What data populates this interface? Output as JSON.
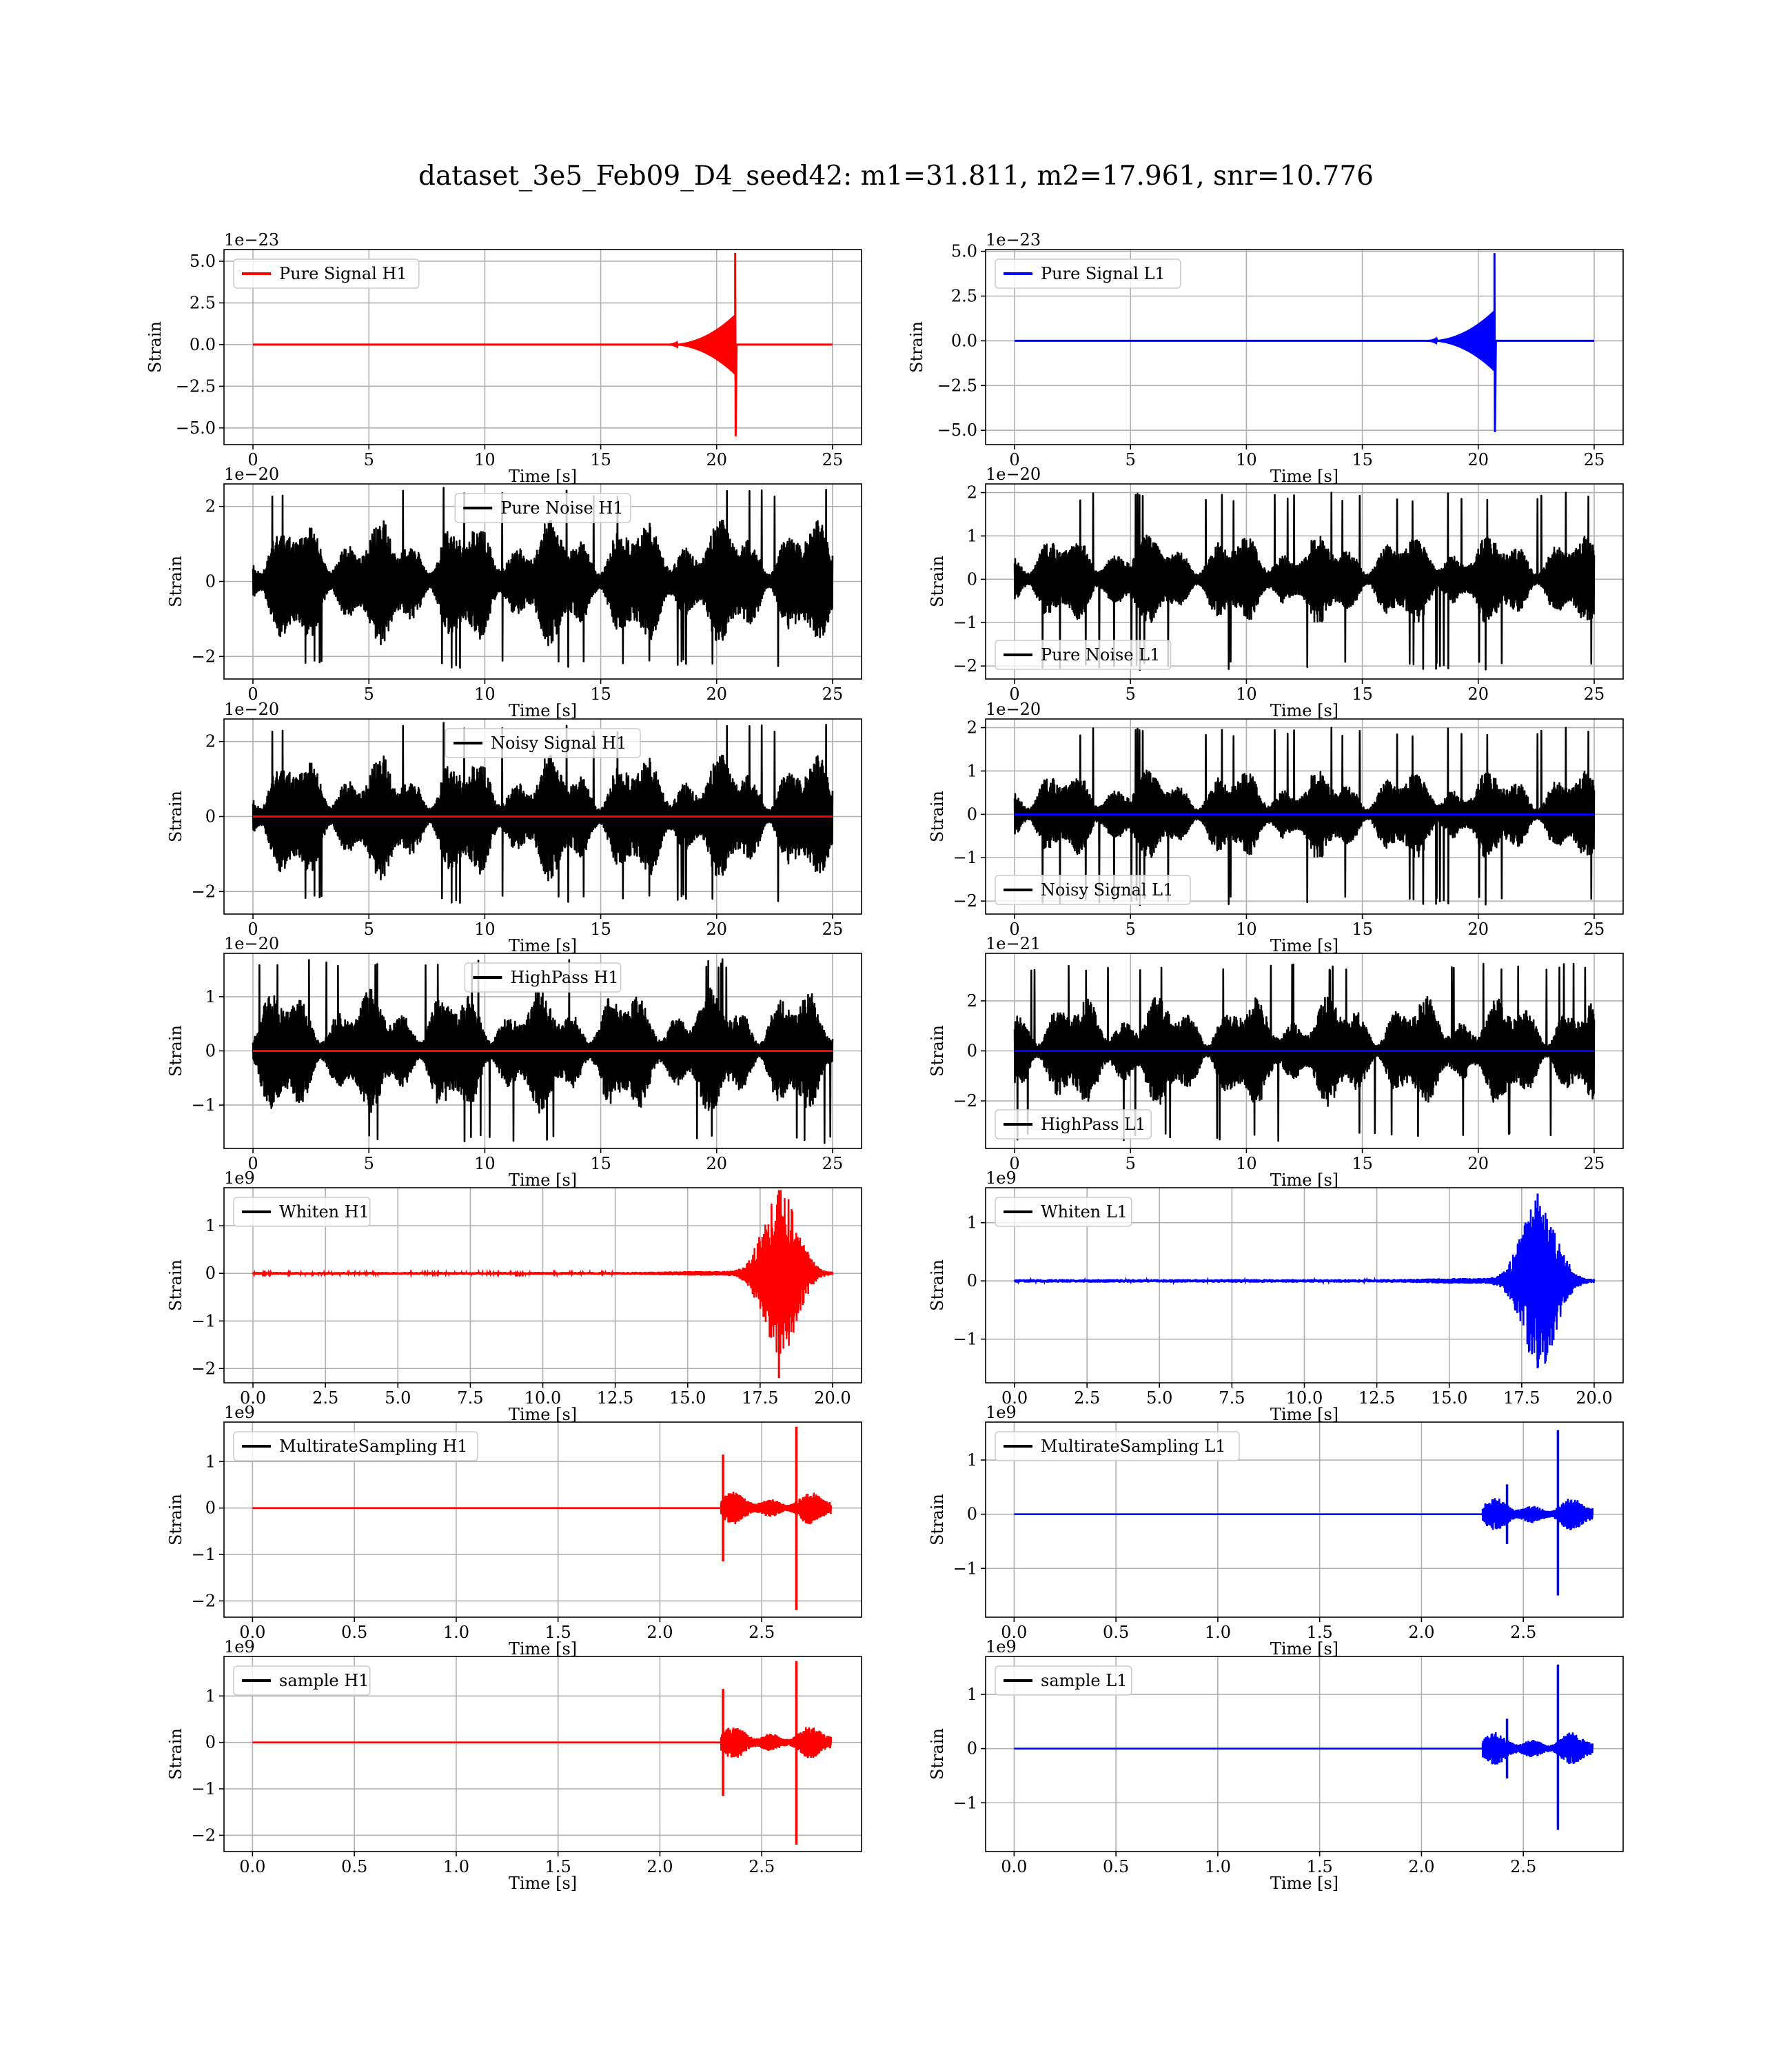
{
  "figure": {
    "title": "dataset_3e5_Feb09_D4_seed42: m1=31.811, m2=17.961, snr=10.776"
  },
  "colors": {
    "h1": "#ff0000",
    "l1": "#0000ff",
    "noise": "#000000",
    "grid": "#b0b0b0",
    "axes": "#000000"
  },
  "chart_data": [
    {
      "id": "pure-signal-h1",
      "type": "line",
      "row": 0,
      "col": 0,
      "legend": "Pure Signal H1",
      "legend_color": "h1",
      "legend_loc": "upper-left",
      "xlabel": "Time [s]",
      "ylabel": "Strain",
      "offset_text": "1e−23",
      "xlim": [
        -1.25,
        26.25
      ],
      "ylim": [
        -6.0,
        5.7
      ],
      "xticks": [
        0,
        5,
        10,
        15,
        20,
        25
      ],
      "xtick_labels": [
        "0",
        "5",
        "10",
        "15",
        "20",
        "25"
      ],
      "yticks": [
        -5,
        -2.5,
        0,
        2.5,
        5
      ],
      "ytick_labels": [
        "−5.0",
        "−2.5",
        "0.0",
        "2.5",
        "5.0"
      ],
      "signal": {
        "kind": "chirp",
        "color": "h1",
        "t0": 0,
        "t1": 25,
        "merge": 20.8,
        "peak": 5.5,
        "trough": -5.5,
        "plateau": 1.8
      }
    },
    {
      "id": "pure-signal-l1",
      "type": "line",
      "row": 0,
      "col": 1,
      "legend": "Pure Signal L1",
      "legend_color": "l1",
      "legend_loc": "upper-left",
      "xlabel": "Time [s]",
      "ylabel": "Strain",
      "offset_text": "1e−23",
      "xlim": [
        -1.25,
        26.25
      ],
      "ylim": [
        -5.8,
        5.1
      ],
      "xticks": [
        0,
        5,
        10,
        15,
        20,
        25
      ],
      "xtick_labels": [
        "0",
        "5",
        "10",
        "15",
        "20",
        "25"
      ],
      "yticks": [
        -5,
        -2.5,
        0,
        2.5,
        5
      ],
      "ytick_labels": [
        "−5.0",
        "−2.5",
        "0.0",
        "2.5",
        "5.0"
      ],
      "signal": {
        "kind": "chirp",
        "color": "l1",
        "t0": 0,
        "t1": 25,
        "merge": 20.7,
        "peak": 4.9,
        "trough": -5.1,
        "plateau": 1.7
      }
    },
    {
      "id": "pure-noise-h1",
      "type": "line",
      "row": 1,
      "col": 0,
      "legend": "Pure Noise H1",
      "legend_color": "noise",
      "legend_loc": "upper-center",
      "xlabel": "Time [s]",
      "ylabel": "Strain",
      "offset_text": "1e−20",
      "xlim": [
        -1.25,
        26.25
      ],
      "ylim": [
        -2.6,
        2.6
      ],
      "xticks": [
        0,
        5,
        10,
        15,
        20,
        25
      ],
      "xtick_labels": [
        "0",
        "5",
        "10",
        "15",
        "20",
        "25"
      ],
      "yticks": [
        -2,
        0,
        2
      ],
      "ytick_labels": [
        "−2",
        "0",
        "2"
      ],
      "noise": {
        "color": "noise",
        "t0": 0,
        "t1": 25,
        "amp": 1.45,
        "max": 2.5,
        "min": -2.3,
        "seed": 11
      }
    },
    {
      "id": "pure-noise-l1",
      "type": "line",
      "row": 1,
      "col": 1,
      "legend": "Pure Noise L1",
      "legend_color": "noise",
      "legend_loc": "lower-left",
      "xlabel": "Time [s]",
      "ylabel": "Strain",
      "offset_text": "1e−20",
      "xlim": [
        -1.25,
        26.25
      ],
      "ylim": [
        -2.3,
        2.2
      ],
      "xticks": [
        0,
        5,
        10,
        15,
        20,
        25
      ],
      "xtick_labels": [
        "0",
        "5",
        "10",
        "15",
        "20",
        "25"
      ],
      "yticks": [
        -2,
        -1,
        0,
        1,
        2
      ],
      "ytick_labels": [
        "−2",
        "−1",
        "0",
        "1",
        "2"
      ],
      "noise": {
        "color": "noise",
        "t0": 0,
        "t1": 25,
        "amp": 0.9,
        "max": 2.0,
        "min": -2.1,
        "seed": 23
      }
    },
    {
      "id": "noisy-signal-h1",
      "type": "line",
      "row": 2,
      "col": 0,
      "legend": "Noisy Signal H1",
      "legend_color": "noise",
      "legend_loc": "upper-center",
      "xlabel": "Time [s]",
      "ylabel": "Strain",
      "offset_text": "1e−20",
      "xlim": [
        -1.25,
        26.25
      ],
      "ylim": [
        -2.6,
        2.6
      ],
      "xticks": [
        0,
        5,
        10,
        15,
        20,
        25
      ],
      "xtick_labels": [
        "0",
        "5",
        "10",
        "15",
        "20",
        "25"
      ],
      "yticks": [
        -2,
        0,
        2
      ],
      "ytick_labels": [
        "−2",
        "0",
        "2"
      ],
      "noise": {
        "color": "noise",
        "t0": 0,
        "t1": 25,
        "amp": 1.45,
        "max": 2.5,
        "min": -2.3,
        "seed": 11
      },
      "overlay": {
        "color": "h1",
        "t0": 0,
        "t1": 25,
        "y": 0
      }
    },
    {
      "id": "noisy-signal-l1",
      "type": "line",
      "row": 2,
      "col": 1,
      "legend": "Noisy Signal L1",
      "legend_color": "noise",
      "legend_loc": "lower-left",
      "xlabel": "Time [s]",
      "ylabel": "Strain",
      "offset_text": "1e−20",
      "xlim": [
        -1.25,
        26.25
      ],
      "ylim": [
        -2.3,
        2.2
      ],
      "xticks": [
        0,
        5,
        10,
        15,
        20,
        25
      ],
      "xtick_labels": [
        "0",
        "5",
        "10",
        "15",
        "20",
        "25"
      ],
      "yticks": [
        -2,
        -1,
        0,
        1,
        2
      ],
      "ytick_labels": [
        "−2",
        "−1",
        "0",
        "1",
        "2"
      ],
      "noise": {
        "color": "noise",
        "t0": 0,
        "t1": 25,
        "amp": 0.9,
        "max": 2.0,
        "min": -2.1,
        "seed": 23
      },
      "overlay": {
        "color": "l1",
        "t0": 0,
        "t1": 25,
        "y": 0
      }
    },
    {
      "id": "highpass-h1",
      "type": "line",
      "row": 3,
      "col": 0,
      "legend": "HighPass H1",
      "legend_color": "noise",
      "legend_loc": "upper-center",
      "xlabel": "Time [s]",
      "ylabel": "Strain",
      "offset_text": "1e−20",
      "xlim": [
        -1.25,
        26.25
      ],
      "ylim": [
        -1.8,
        1.8
      ],
      "xticks": [
        0,
        5,
        10,
        15,
        20,
        25
      ],
      "xtick_labels": [
        "0",
        "5",
        "10",
        "15",
        "20",
        "25"
      ],
      "yticks": [
        -1,
        0,
        1
      ],
      "ytick_labels": [
        "−1",
        "0",
        "1"
      ],
      "noise": {
        "color": "noise",
        "t0": 0,
        "t1": 25,
        "amp": 1.0,
        "max": 1.7,
        "min": -1.7,
        "seed": 37
      },
      "overlay": {
        "color": "h1",
        "t0": 0,
        "t1": 25,
        "y": 0
      }
    },
    {
      "id": "highpass-l1",
      "type": "line",
      "row": 3,
      "col": 1,
      "legend": "HighPass L1",
      "legend_color": "noise",
      "legend_loc": "lower-left",
      "xlabel": "Time [s]",
      "ylabel": "Strain",
      "offset_text": "1e−21",
      "xlim": [
        -1.25,
        26.25
      ],
      "ylim": [
        -3.9,
        3.9
      ],
      "xticks": [
        0,
        5,
        10,
        15,
        20,
        25
      ],
      "xtick_labels": [
        "0",
        "5",
        "10",
        "15",
        "20",
        "25"
      ],
      "yticks": [
        -2,
        0,
        2
      ],
      "ytick_labels": [
        "−2",
        "0",
        "2"
      ],
      "noise": {
        "color": "noise",
        "t0": 0,
        "t1": 25,
        "amp": 1.9,
        "max": 3.5,
        "min": -3.6,
        "seed": 41
      },
      "overlay": {
        "color": "l1",
        "t0": 0,
        "t1": 25,
        "y": 0
      }
    },
    {
      "id": "whiten-h1",
      "type": "line",
      "row": 4,
      "col": 0,
      "legend": "Whiten H1",
      "legend_color": "noise",
      "legend_loc": "upper-left",
      "xlabel": "Time [s]",
      "ylabel": "Strain",
      "offset_text": "1e9",
      "xlim": [
        -1.0,
        21.0
      ],
      "ylim": [
        -2.3,
        1.8
      ],
      "xticks": [
        0,
        2.5,
        5,
        7.5,
        10,
        12.5,
        15,
        17.5,
        20
      ],
      "xtick_labels": [
        "0.0",
        "2.5",
        "5.0",
        "7.5",
        "10.0",
        "12.5",
        "15.0",
        "17.5",
        "20.0"
      ],
      "yticks": [
        -2,
        -1,
        0,
        1
      ],
      "ytick_labels": [
        "−2",
        "−1",
        "0",
        "1"
      ],
      "burst": {
        "color": "h1",
        "t0": 0,
        "t1": 20,
        "center": 18.2,
        "width": 0.8,
        "peak": 1.75,
        "trough": -2.2,
        "floor": 0.02
      }
    },
    {
      "id": "whiten-l1",
      "type": "line",
      "row": 4,
      "col": 1,
      "legend": "Whiten L1",
      "legend_color": "noise",
      "legend_loc": "upper-left",
      "xlabel": "Time [s]",
      "ylabel": "Strain",
      "offset_text": "1e9",
      "xlim": [
        -1.0,
        21.0
      ],
      "ylim": [
        -1.75,
        1.6
      ],
      "xticks": [
        0,
        2.5,
        5,
        7.5,
        10,
        12.5,
        15,
        17.5,
        20
      ],
      "xtick_labels": [
        "0.0",
        "2.5",
        "5.0",
        "7.5",
        "10.0",
        "12.5",
        "15.0",
        "17.5",
        "20.0"
      ],
      "yticks": [
        -1,
        0,
        1
      ],
      "ytick_labels": [
        "−1",
        "0",
        "1"
      ],
      "burst": {
        "color": "l1",
        "t0": 0,
        "t1": 20,
        "center": 18.1,
        "width": 0.8,
        "peak": 1.5,
        "trough": -1.5,
        "floor": 0.02
      }
    },
    {
      "id": "multirate-h1",
      "type": "line",
      "row": 5,
      "col": 0,
      "legend": "MultirateSampling H1",
      "legend_color": "noise",
      "legend_loc": "upper-left",
      "xlabel": "Time [s]",
      "ylabel": "Strain",
      "offset_text": "1e9",
      "xlim": [
        -0.14,
        2.99
      ],
      "ylim": [
        -2.35,
        1.85
      ],
      "xticks": [
        0,
        0.5,
        1.0,
        1.5,
        2.0,
        2.5
      ],
      "xtick_labels": [
        "0.0",
        "0.5",
        "1.0",
        "1.5",
        "2.0",
        "2.5"
      ],
      "yticks": [
        -2,
        -1,
        0,
        1
      ],
      "ytick_labels": [
        "−2",
        "−1",
        "0",
        "1"
      ],
      "multirate": {
        "color": "h1",
        "t0": 0,
        "t1": 2.84,
        "start": 2.3,
        "spike1": 2.31,
        "spike1_peak": 1.15,
        "spike1_trough": -1.15,
        "spike2": 2.67,
        "spike2_peak": 1.75,
        "spike2_trough": -2.2,
        "amp": 0.35
      }
    },
    {
      "id": "multirate-l1",
      "type": "line",
      "row": 5,
      "col": 1,
      "legend": "MultirateSampling L1",
      "legend_color": "noise",
      "legend_loc": "upper-left",
      "xlabel": "Time [s]",
      "ylabel": "Strain",
      "offset_text": "1e9",
      "xlim": [
        -0.14,
        2.99
      ],
      "ylim": [
        -1.9,
        1.7
      ],
      "xticks": [
        0,
        0.5,
        1.0,
        1.5,
        2.0,
        2.5
      ],
      "xtick_labels": [
        "0.0",
        "0.5",
        "1.0",
        "1.5",
        "2.0",
        "2.5"
      ],
      "yticks": [
        -1,
        0,
        1
      ],
      "ytick_labels": [
        "−1",
        "0",
        "1"
      ],
      "multirate": {
        "color": "l1",
        "t0": 0,
        "t1": 2.84,
        "start": 2.3,
        "spike1": 2.42,
        "spike1_peak": 0.55,
        "spike1_trough": -0.55,
        "spike2": 2.67,
        "spike2_peak": 1.55,
        "spike2_trough": -1.5,
        "amp": 0.3
      }
    },
    {
      "id": "sample-h1",
      "type": "line",
      "row": 6,
      "col": 0,
      "legend": "sample H1",
      "legend_color": "noise",
      "legend_loc": "upper-left",
      "xlabel": "Time [s]",
      "ylabel": "Strain",
      "offset_text": "1e9",
      "xlim": [
        -0.14,
        2.99
      ],
      "ylim": [
        -2.35,
        1.85
      ],
      "xticks": [
        0,
        0.5,
        1.0,
        1.5,
        2.0,
        2.5
      ],
      "xtick_labels": [
        "0.0",
        "0.5",
        "1.0",
        "1.5",
        "2.0",
        "2.5"
      ],
      "yticks": [
        -2,
        -1,
        0,
        1
      ],
      "ytick_labels": [
        "−2",
        "−1",
        "0",
        "1"
      ],
      "multirate": {
        "color": "h1",
        "t0": 0,
        "t1": 2.84,
        "start": 2.3,
        "spike1": 2.31,
        "spike1_peak": 1.15,
        "spike1_trough": -1.15,
        "spike2": 2.67,
        "spike2_peak": 1.75,
        "spike2_trough": -2.2,
        "amp": 0.35
      }
    },
    {
      "id": "sample-l1",
      "type": "line",
      "row": 6,
      "col": 1,
      "legend": "sample L1",
      "legend_color": "noise",
      "legend_loc": "upper-left",
      "xlabel": "Time [s]",
      "ylabel": "Strain",
      "offset_text": "1e9",
      "xlim": [
        -0.14,
        2.99
      ],
      "ylim": [
        -1.9,
        1.7
      ],
      "xticks": [
        0,
        0.5,
        1.0,
        1.5,
        2.0,
        2.5
      ],
      "xtick_labels": [
        "0.0",
        "0.5",
        "1.0",
        "1.5",
        "2.0",
        "2.5"
      ],
      "yticks": [
        -1,
        0,
        1
      ],
      "ytick_labels": [
        "−1",
        "0",
        "1"
      ],
      "multirate": {
        "color": "l1",
        "t0": 0,
        "t1": 2.84,
        "start": 2.3,
        "spike1": 2.42,
        "spike1_peak": 0.55,
        "spike1_trough": -0.55,
        "spike2": 2.67,
        "spike2_peak": 1.55,
        "spike2_trough": -1.5,
        "amp": 0.3
      }
    }
  ]
}
